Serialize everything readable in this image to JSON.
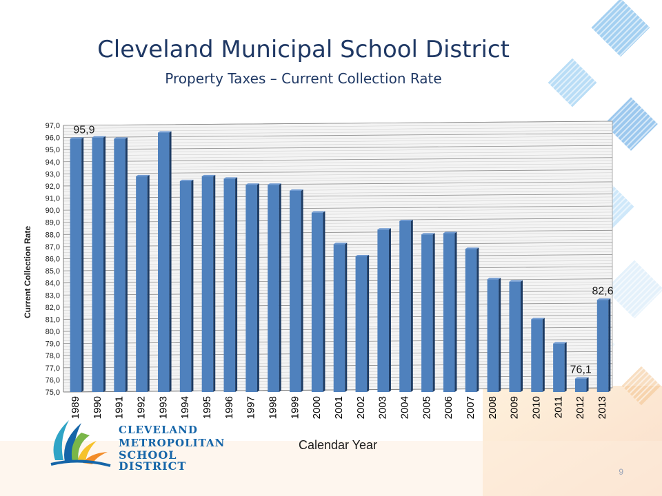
{
  "slide": {
    "title": "Cleveland Municipal School District",
    "subtitle": "Property Taxes – Current Collection Rate",
    "page_number": "9"
  },
  "logo": {
    "line1": "CLEVELAND",
    "line2": "METROPOLITAN",
    "line3": "SCHOOL DISTRICT",
    "colors": {
      "blue": "#1565a8",
      "teal": "#2fa4c6",
      "green": "#7ab648",
      "yellow": "#f6c22b",
      "orange": "#f28c28"
    }
  },
  "chart_data": {
    "type": "bar",
    "title": "",
    "xlabel": "Calendar Year",
    "ylabel": "Current Collection Rate",
    "ylim": [
      75.0,
      97.0
    ],
    "y_step": 1.0,
    "decimal_separator": ",",
    "grid": true,
    "legend": "none",
    "bar_color": "#4f81bd",
    "categories": [
      "1989",
      "1990",
      "1991",
      "1992",
      "1993",
      "1994",
      "1995",
      "1996",
      "1997",
      "1998",
      "1999",
      "2000",
      "2001",
      "2002",
      "2003",
      "2004",
      "2005",
      "2006",
      "2007",
      "2008",
      "2009",
      "2010",
      "2011",
      "2012",
      "2013"
    ],
    "values": [
      95.9,
      96.0,
      95.9,
      92.8,
      96.4,
      92.4,
      92.8,
      92.6,
      92.1,
      92.1,
      91.6,
      89.8,
      87.2,
      86.2,
      88.4,
      89.1,
      88.0,
      88.1,
      86.8,
      84.3,
      84.1,
      81.0,
      79.0,
      76.1,
      82.6
    ],
    "data_labels": [
      {
        "category": "1989",
        "text": "95,9"
      },
      {
        "category": "2012",
        "text": "76,1"
      },
      {
        "category": "2013",
        "text": "82,6"
      }
    ]
  }
}
